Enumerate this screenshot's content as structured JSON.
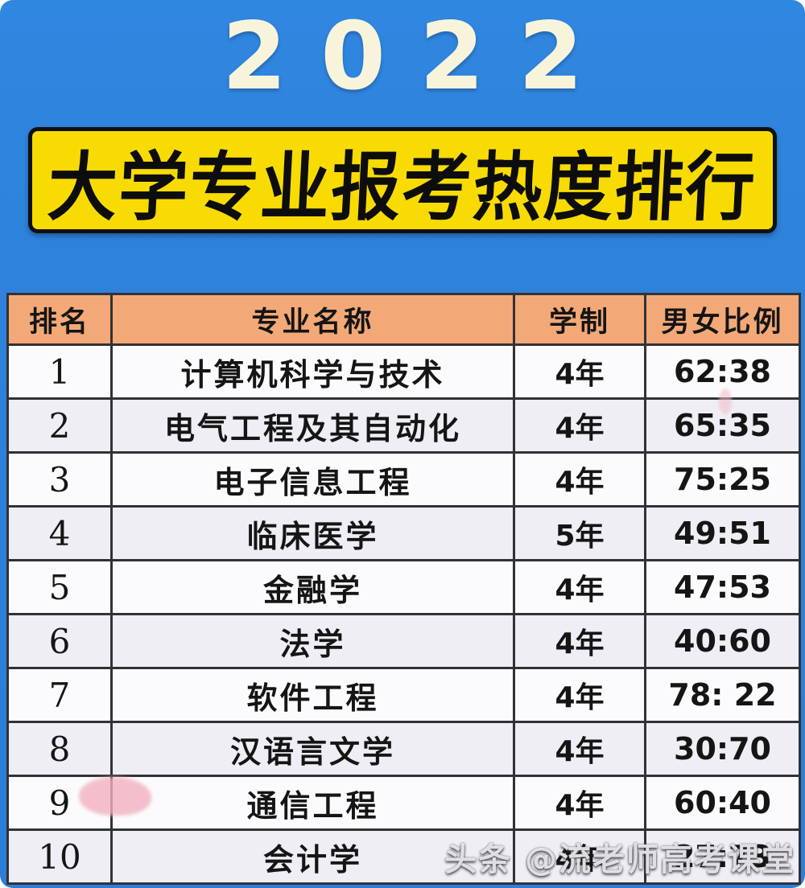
{
  "header": {
    "year": "2022",
    "banner_title": "大学专业报考热度排行"
  },
  "chart_data": {
    "type": "table",
    "title": "2022 大学专业报考热度排行",
    "columns": [
      "排名",
      "专业名称",
      "学制",
      "男女比例"
    ],
    "rows": [
      [
        "1",
        "计算机科学与技术",
        "4年",
        "62:38"
      ],
      [
        "2",
        "电气工程及其自动化",
        "4年",
        "65:35"
      ],
      [
        "3",
        "电子信息工程",
        "4年",
        "75:25"
      ],
      [
        "4",
        "临床医学",
        "5年",
        "49:51"
      ],
      [
        "5",
        "金融学",
        "4年",
        "47:53"
      ],
      [
        "6",
        "法学",
        "4年",
        "40:60"
      ],
      [
        "7",
        "软件工程",
        "4年",
        "78: 22"
      ],
      [
        "8",
        "汉语言文学",
        "4年",
        "30:70"
      ],
      [
        "9",
        "通信工程",
        "4年",
        "60:40"
      ],
      [
        "10",
        "会计学",
        "4年",
        "27:73"
      ]
    ]
  },
  "watermark": {
    "text": "头条 @流老师高考课堂"
  },
  "colors": {
    "background_blue": "#2e82db",
    "banner_yellow": "#f8db02",
    "header_orange": "#f3a977",
    "year_cream": "#f8f4dc",
    "cell_border": "#323236",
    "text_black": "#151515"
  }
}
